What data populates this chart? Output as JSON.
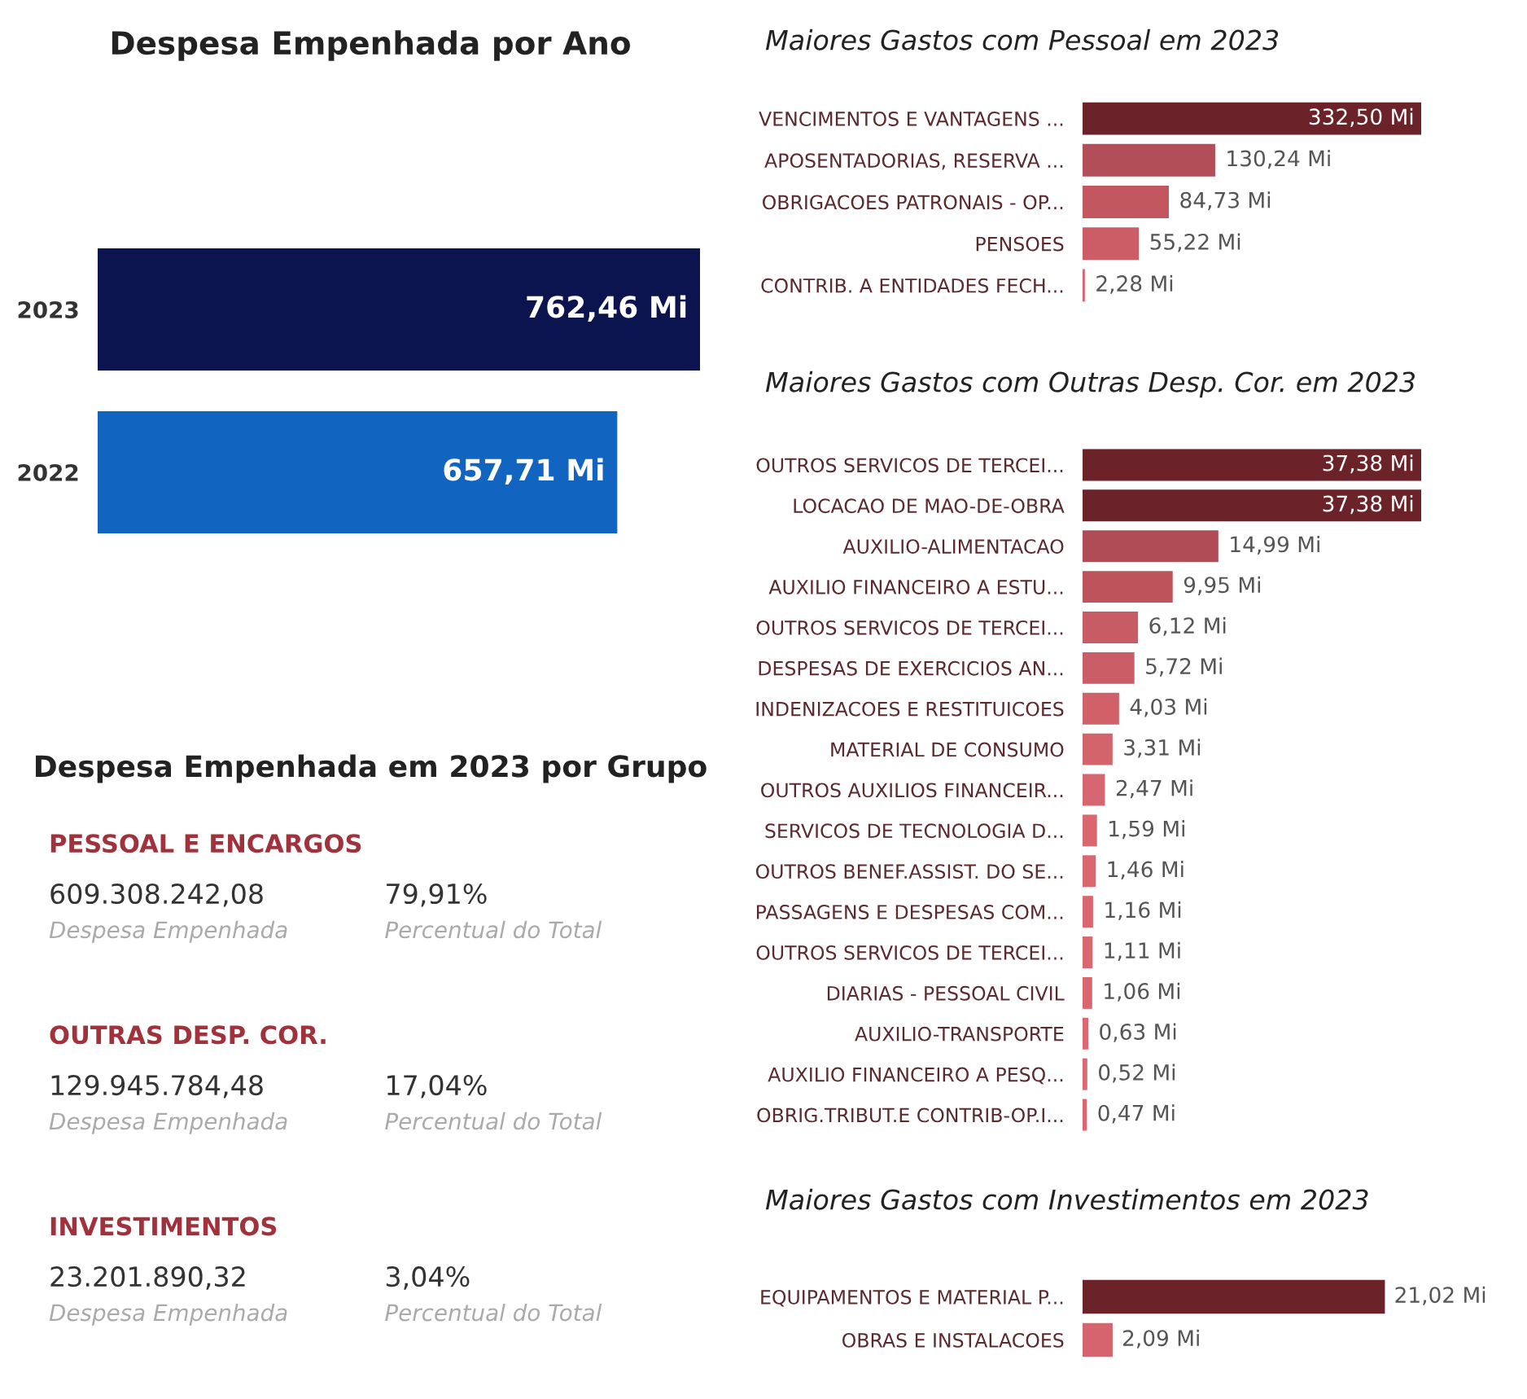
{
  "chart_data": [
    {
      "type": "bar",
      "orientation": "horizontal",
      "title": "Despesa Empenhada por Ano",
      "categories": [
        "2023",
        "2022"
      ],
      "values": [
        762.46,
        657.71
      ],
      "value_labels": [
        "762,46 Mi",
        "657,71 Mi"
      ],
      "colors": [
        "#0c1450",
        "#1164bf"
      ]
    },
    {
      "type": "other",
      "title": "Despesa Empenhada em 2023 por Grupo",
      "annotations": [
        "PESSOAL E ENCARGOS",
        "609.308.242,08",
        "79,91%",
        "Despesa Empenhada",
        "Percentual do Total",
        "OUTRAS DESP. COR.",
        "129.945.784,48",
        "17,04%",
        "Despesa Empenhada",
        "Percentual do Total",
        "INVESTIMENTOS",
        "23.201.890,32",
        "3,04%",
        "Despesa Empenhada",
        "Percentual do Total"
      ]
    },
    {
      "type": "bar",
      "orientation": "horizontal",
      "title": "Maiores Gastos com Pessoal em 2023",
      "categories": [
        "VENCIMENTOS E VANTAGENS ...",
        "APOSENTADORIAS, RESERVA ...",
        "OBRIGACOES PATRONAIS - OP...",
        "PENSOES",
        "CONTRIB. A ENTIDADES FECH..."
      ],
      "values": [
        332.5,
        130.24,
        84.73,
        55.22,
        2.28
      ],
      "value_labels": [
        "332,50 Mi",
        "130,24 Mi",
        "84,73 Mi",
        "55,22 Mi",
        "2,28 Mi"
      ],
      "colors": [
        "#6b2228",
        "#b24e57",
        "#c2575f",
        "#cc5d66",
        "#d6666f"
      ]
    },
    {
      "type": "bar",
      "orientation": "horizontal",
      "title": "Maiores Gastos com Outras Desp. Cor. em 2023",
      "categories": [
        "OUTROS SERVICOS DE TERCEI...",
        "LOCACAO DE MAO-DE-OBRA",
        "AUXILIO-ALIMENTACAO",
        "AUXILIO FINANCEIRO A ESTU...",
        "OUTROS SERVICOS DE TERCEI...",
        "DESPESAS DE EXERCICIOS AN...",
        "INDENIZACOES E RESTITUICOES",
        "MATERIAL DE CONSUMO",
        "OUTROS AUXILIOS FINANCEIR...",
        "SERVICOS DE TECNOLOGIA D...",
        "OUTROS BENEF.ASSIST. DO SE...",
        "PASSAGENS E DESPESAS COM...",
        "OUTROS SERVICOS DE TERCEI...",
        "DIARIAS - PESSOAL CIVIL",
        "AUXILIO-TRANSPORTE",
        "AUXILIO FINANCEIRO A PESQ...",
        "OBRIG.TRIBUT.E CONTRIB-OP.I..."
      ],
      "values": [
        37.38,
        37.38,
        14.99,
        9.95,
        6.12,
        5.72,
        4.03,
        3.31,
        2.47,
        1.59,
        1.46,
        1.16,
        1.11,
        1.06,
        0.63,
        0.52,
        0.47
      ],
      "value_labels": [
        "37,38 Mi",
        "37,38 Mi",
        "14,99 Mi",
        "9,95 Mi",
        "6,12 Mi",
        "5,72 Mi",
        "4,03 Mi",
        "3,31 Mi",
        "2,47 Mi",
        "1,59 Mi",
        "1,46 Mi",
        "1,16 Mi",
        "1,11 Mi",
        "1,06 Mi",
        "0,63 Mi",
        "0,52 Mi",
        "0,47 Mi"
      ],
      "colors": [
        "#6b2228",
        "#6b2228",
        "#b04c55",
        "#bd545c",
        "#c85c64",
        "#ca5d65",
        "#d06169",
        "#d4646c",
        "#d6666f",
        "#d8676f",
        "#d8676f",
        "#d8676f",
        "#d8676f",
        "#d8676f",
        "#d96870",
        "#d96870",
        "#d96870"
      ]
    },
    {
      "type": "bar",
      "orientation": "horizontal",
      "title": "Maiores Gastos com Investimentos em 2023",
      "categories": [
        "EQUIPAMENTOS E MATERIAL P...",
        "OBRAS E INSTALACOES"
      ],
      "values": [
        21.02,
        2.09
      ],
      "value_labels": [
        "21,02 Mi",
        "2,09 Mi"
      ],
      "colors": [
        "#6b2228",
        "#d6646e"
      ]
    }
  ]
}
